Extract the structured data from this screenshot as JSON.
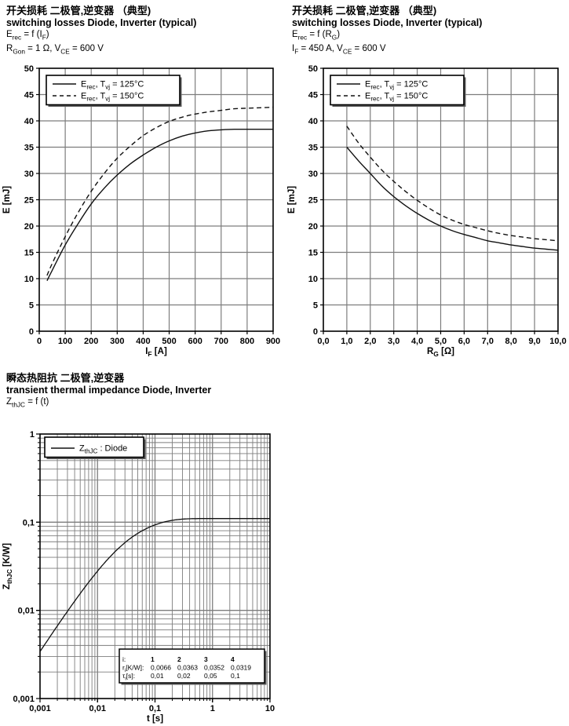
{
  "colors": {
    "grid": "#7d7d7d",
    "axis": "#000000",
    "curve": "#101010",
    "shadow": "#595959"
  },
  "chart_data": [
    {
      "id": "erec-vs-if",
      "type": "line",
      "title_zh": "开关损耗 二极管,逆变器 （典型)",
      "title_en": "switching losses Diode, Inverter (typical)",
      "conditions": [
        "E|rec| = f (I|F|)",
        "R|Gon| = 1 Ω, V|CE| = 600 V"
      ],
      "xlabel": "I|F| [A]",
      "ylabel": "E [mJ]",
      "xlim": [
        0,
        900
      ],
      "ylim": [
        0,
        50
      ],
      "xticks": [
        0,
        100,
        200,
        300,
        400,
        500,
        600,
        700,
        800,
        900
      ],
      "xtick_labels": [
        "0",
        "100",
        "200",
        "300",
        "400",
        "500",
        "600",
        "700",
        "800",
        "900"
      ],
      "yticks": [
        0,
        5,
        10,
        15,
        20,
        25,
        30,
        35,
        40,
        45,
        50
      ],
      "ytick_labels": [
        "0",
        "5",
        "10",
        "15",
        "20",
        "25",
        "30",
        "35",
        "40",
        "45",
        "50"
      ],
      "grid": true,
      "legend_position": "top-left",
      "series": [
        {
          "name": "E|rec|, T|vj| = 125°C",
          "style": "solid",
          "points": [
            [
              30,
              9.6
            ],
            [
              50,
              11.6
            ],
            [
              100,
              16.4
            ],
            [
              150,
              20.5
            ],
            [
              200,
              24.2
            ],
            [
              250,
              27.2
            ],
            [
              300,
              29.7
            ],
            [
              350,
              31.8
            ],
            [
              400,
              33.5
            ],
            [
              450,
              35.0
            ],
            [
              500,
              36.2
            ],
            [
              550,
              37.1
            ],
            [
              600,
              37.7
            ],
            [
              650,
              38.1
            ],
            [
              700,
              38.3
            ],
            [
              750,
              38.4
            ],
            [
              800,
              38.4
            ],
            [
              850,
              38.4
            ],
            [
              900,
              38.4
            ]
          ]
        },
        {
          "name": "E|rec|, T|vj| = 150°C",
          "style": "dashed",
          "points": [
            [
              30,
              10.6
            ],
            [
              50,
              12.9
            ],
            [
              100,
              18.0
            ],
            [
              150,
              22.6
            ],
            [
              200,
              26.6
            ],
            [
              250,
              30.0
            ],
            [
              300,
              32.9
            ],
            [
              350,
              35.2
            ],
            [
              400,
              37.2
            ],
            [
              450,
              38.7
            ],
            [
              500,
              39.9
            ],
            [
              550,
              40.7
            ],
            [
              600,
              41.3
            ],
            [
              650,
              41.7
            ],
            [
              700,
              42.0
            ],
            [
              750,
              42.3
            ],
            [
              800,
              42.4
            ],
            [
              850,
              42.5
            ],
            [
              900,
              42.6
            ]
          ]
        }
      ]
    },
    {
      "id": "erec-vs-rg",
      "type": "line",
      "title_zh": "开关损耗 二极管,逆变器 （典型)",
      "title_en": "switching losses Diode, Inverter (typical)",
      "conditions": [
        "E|rec| = f (R|G|)",
        "I|F| = 450 A, V|CE| = 600 V"
      ],
      "xlabel": "R|G| [Ω]",
      "ylabel": "E [mJ]",
      "xlim": [
        0,
        10
      ],
      "ylim": [
        0,
        50
      ],
      "xticks": [
        0,
        1,
        2,
        3,
        4,
        5,
        6,
        7,
        8,
        9,
        10
      ],
      "xtick_labels": [
        "0,0",
        "1,0",
        "2,0",
        "3,0",
        "4,0",
        "5,0",
        "6,0",
        "7,0",
        "8,0",
        "9,0",
        "10,0"
      ],
      "yticks": [
        0,
        5,
        10,
        15,
        20,
        25,
        30,
        35,
        40,
        45,
        50
      ],
      "ytick_labels": [
        "0",
        "5",
        "10",
        "15",
        "20",
        "25",
        "30",
        "35",
        "40",
        "45",
        "50"
      ],
      "grid": true,
      "legend_position": "top-left",
      "series": [
        {
          "name": "E|rec|, T|vj| = 125°C",
          "style": "solid",
          "points": [
            [
              1,
              35.0
            ],
            [
              1.5,
              32.4
            ],
            [
              2,
              30.0
            ],
            [
              2.5,
              27.6
            ],
            [
              3,
              25.6
            ],
            [
              3.5,
              23.9
            ],
            [
              4,
              22.4
            ],
            [
              4.5,
              21.1
            ],
            [
              5,
              20.0
            ],
            [
              5.5,
              19.1
            ],
            [
              6,
              18.4
            ],
            [
              6.5,
              17.8
            ],
            [
              7,
              17.2
            ],
            [
              7.5,
              16.8
            ],
            [
              8,
              16.4
            ],
            [
              8.5,
              16.1
            ],
            [
              9,
              15.8
            ],
            [
              9.5,
              15.6
            ],
            [
              10,
              15.4
            ]
          ]
        },
        {
          "name": "E|rec|, T|vj| = 150°C",
          "style": "dashed",
          "points": [
            [
              1,
              39.0
            ],
            [
              1.5,
              35.8
            ],
            [
              2,
              33.1
            ],
            [
              2.5,
              30.6
            ],
            [
              3,
              28.5
            ],
            [
              3.5,
              26.6
            ],
            [
              4,
              24.9
            ],
            [
              4.5,
              23.4
            ],
            [
              5,
              22.1
            ],
            [
              5.5,
              21.1
            ],
            [
              6,
              20.3
            ],
            [
              6.5,
              19.7
            ],
            [
              7,
              19.1
            ],
            [
              7.5,
              18.6
            ],
            [
              8,
              18.2
            ],
            [
              8.5,
              17.9
            ],
            [
              9,
              17.6
            ],
            [
              9.5,
              17.4
            ],
            [
              10,
              17.2
            ]
          ]
        }
      ]
    },
    {
      "id": "zthjc-vs-t",
      "type": "line-loglog",
      "title_zh": "瞬态热阻抗 二极管,逆变器",
      "title_en": "transient thermal impedance Diode, Inverter",
      "conditions": [
        "Z|thJC| = f (t)"
      ],
      "xlabel": "t [s]",
      "ylabel": "Z|thJC| [K/W]",
      "xlim": [
        0.001,
        10
      ],
      "ylim": [
        0.001,
        1
      ],
      "xtick_labels": [
        "0,001",
        "0,01",
        "0,1",
        "1",
        "10"
      ],
      "ytick_labels": [
        "0,001",
        "0,01",
        "0,1",
        "1"
      ],
      "grid": true,
      "legend_position": "top-left",
      "series": [
        {
          "name": "Z|thJC| : Diode",
          "style": "solid",
          "foster": {
            "r": [
              0.0066,
              0.0363,
              0.0352,
              0.0319
            ],
            "tau": [
              0.01,
              0.02,
              0.05,
              0.1
            ]
          }
        }
      ],
      "table": {
        "rows": [
          {
            "label": "i:",
            "values": [
              "1",
              "2",
              "3",
              "4"
            ],
            "bold": true
          },
          {
            "label": "r|i|[K/W]:",
            "values": [
              "0,0066",
              "0,0363",
              "0,0352",
              "0,0319"
            ],
            "bold": false
          },
          {
            "label": "τ|i|[s]:",
            "values": [
              "0,01",
              "0,02",
              "0,05",
              "0,1"
            ],
            "bold": false
          }
        ]
      }
    }
  ]
}
